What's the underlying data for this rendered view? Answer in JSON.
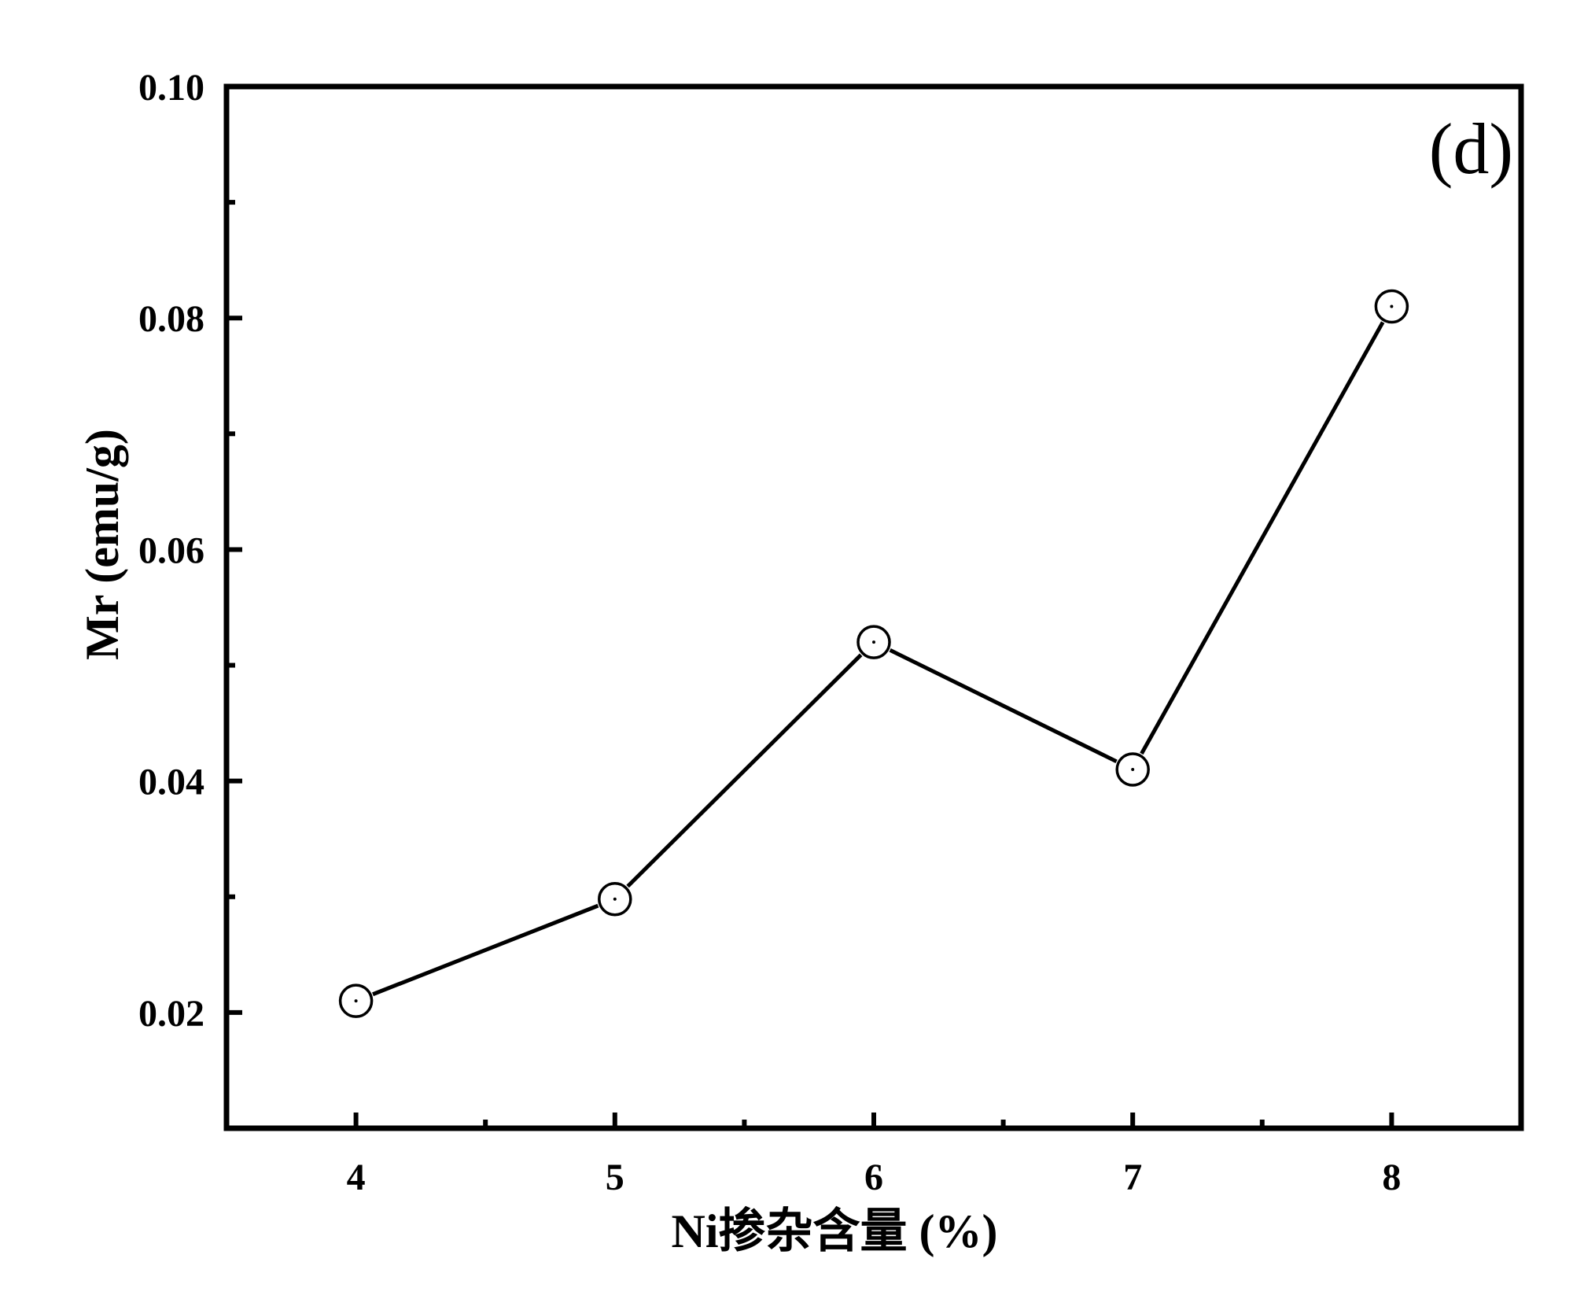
{
  "chart_data": {
    "type": "line",
    "title": "",
    "panel_label": "(d)",
    "xlabel": "Ni掺杂含量 (%)",
    "ylabel": "Mr (emu/g)",
    "xlim": [
      3.5,
      8.5
    ],
    "ylim": [
      0.01,
      0.1
    ],
    "x_ticks": [
      4,
      5,
      6,
      7,
      8
    ],
    "x_tick_labels": [
      "4",
      "5",
      "6",
      "7",
      "8"
    ],
    "x_minor_ticks": [
      4.5,
      5.5,
      6.5,
      7.5
    ],
    "y_ticks": [
      0.02,
      0.04,
      0.06,
      0.08,
      0.1
    ],
    "y_tick_labels": [
      "0.02",
      "0.04",
      "0.06",
      "0.08",
      "0.10"
    ],
    "y_minor_ticks": [
      0.03,
      0.05,
      0.07,
      0.09
    ],
    "grid": false,
    "legend": "none",
    "line_color": "#000000",
    "marker": "open-circle-with-center-dot",
    "series": [
      {
        "x": [
          4,
          5,
          6,
          7,
          8
        ],
        "y": [
          0.021,
          0.0298,
          0.052,
          0.041,
          0.081
        ]
      }
    ]
  }
}
